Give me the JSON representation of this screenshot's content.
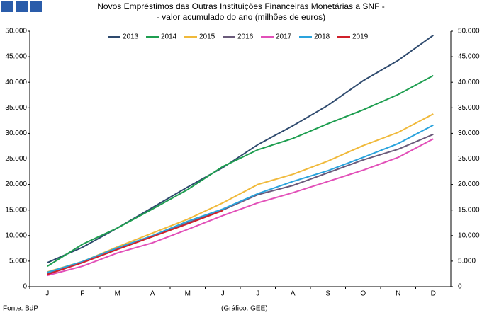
{
  "chart_data": {
    "type": "line",
    "title": [
      "Novos Empréstimos das Outras Instituições Financeiras Monetárias a SNF -",
      "- valor acumulado do ano (milhões de euros)"
    ],
    "source": "Fonte: BdP",
    "credit": "(Gráfico: GEE)",
    "categories": [
      "J",
      "F",
      "M",
      "A",
      "M",
      "J",
      "J",
      "A",
      "S",
      "O",
      "N",
      "D"
    ],
    "series": [
      {
        "name": "2013",
        "color": "#2e4a6e",
        "values": [
          4700,
          7700,
          11500,
          15500,
          19500,
          23300,
          27800,
          31500,
          35500,
          40300,
          44300,
          49200
        ]
      },
      {
        "name": "2014",
        "color": "#1e9e50",
        "values": [
          4000,
          8300,
          11500,
          15200,
          19000,
          23500,
          26800,
          29000,
          31900,
          34600,
          37600,
          41300
        ]
      },
      {
        "name": "2015",
        "color": "#f0b93a",
        "values": [
          2900,
          4900,
          7800,
          10500,
          13200,
          16400,
          20000,
          22000,
          24600,
          27600,
          30200,
          33800
        ]
      },
      {
        "name": "2016",
        "color": "#6a5a7a",
        "values": [
          2500,
          4800,
          7500,
          9800,
          12500,
          15000,
          18000,
          19800,
          22300,
          24800,
          26900,
          29800
        ]
      },
      {
        "name": "2017",
        "color": "#e24fb8",
        "values": [
          2200,
          4000,
          6600,
          8600,
          11200,
          13900,
          16400,
          18400,
          20600,
          22800,
          25300,
          28900
        ]
      },
      {
        "name": "2018",
        "color": "#2aa3dd",
        "values": [
          2800,
          4900,
          7600,
          10000,
          12800,
          15200,
          18200,
          20600,
          22700,
          25300,
          28000,
          31600
        ]
      },
      {
        "name": "2019",
        "color": "#d0202a",
        "values": [
          2400,
          4700,
          7300,
          9800,
          12300,
          14900,
          null,
          null,
          null,
          null,
          null,
          null
        ]
      }
    ],
    "ylim": [
      0,
      50000
    ],
    "yticks": [
      0,
      {
        "value": 5000,
        "label": "5.000"
      },
      {
        "value": 10000,
        "label": "10.000"
      },
      {
        "value": 15000,
        "label": "15.000"
      },
      {
        "value": 20000,
        "label": "20.000"
      },
      {
        "value": 25000,
        "label": "25.000"
      },
      {
        "value": 30000,
        "label": "30.000"
      },
      {
        "value": 35000,
        "label": "35.000"
      },
      {
        "value": 40000,
        "label": "40.000"
      },
      {
        "value": 45000,
        "label": "45.000"
      },
      {
        "value": 50000,
        "label": "50.000"
      }
    ],
    "y2lim": [
      0,
      50000
    ],
    "y2ticks": [
      0,
      {
        "value": 5000,
        "label": "5.000"
      },
      {
        "value": 10000,
        "label": "10.000"
      },
      {
        "value": 15000,
        "label": "15.000"
      },
      {
        "value": 20000,
        "label": "20.000"
      },
      {
        "value": 25000,
        "label": "25.000"
      },
      {
        "value": 30000,
        "label": "30.000"
      },
      {
        "value": 35000,
        "label": "35.000"
      },
      {
        "value": 40000,
        "label": "40.000"
      },
      {
        "value": 45000,
        "label": "45.000"
      },
      {
        "value": 50000,
        "label": "50.000"
      }
    ],
    "legend": "top",
    "grid": false
  }
}
